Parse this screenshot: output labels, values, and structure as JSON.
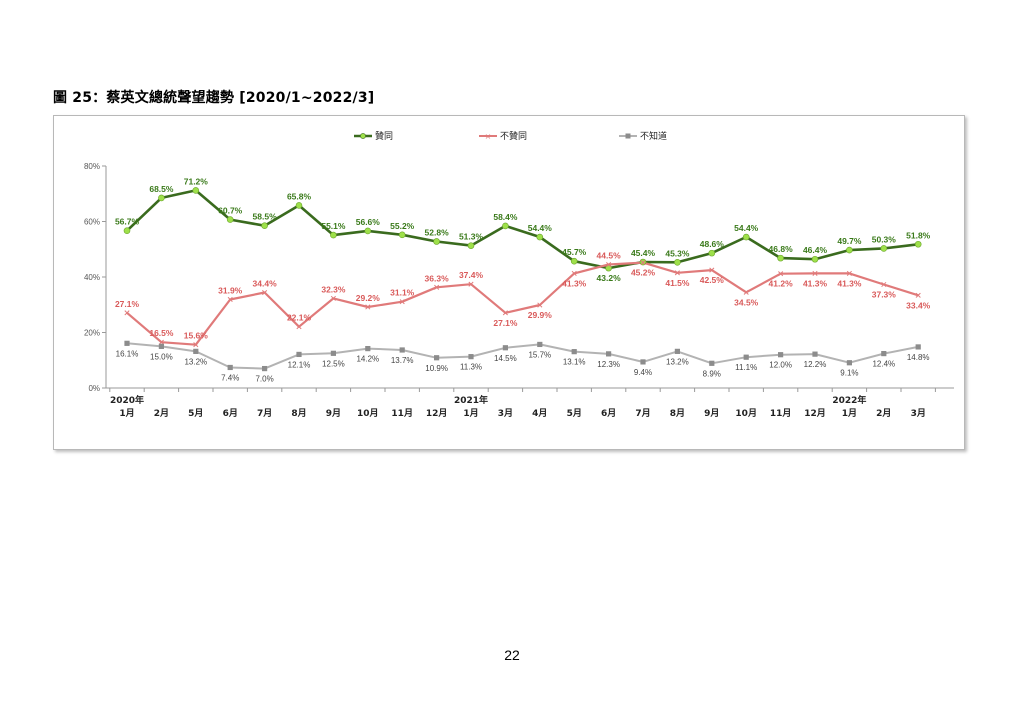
{
  "figure_title": "圖 25：蔡英文總統聲望趨勢  [2020/1~2022/3]",
  "page_number": "22",
  "chart_data": {
    "type": "line",
    "title": "",
    "xlabel": "",
    "ylabel": "",
    "ylim": [
      0,
      80
    ],
    "y_ticks": [
      "0%",
      "20%",
      "40%",
      "60%",
      "80%"
    ],
    "grid": false,
    "legend_position": "top",
    "categories": [
      "2020年 1月",
      "2月",
      "5月",
      "6月",
      "7月",
      "8月",
      "9月",
      "10月",
      "11月",
      "12月",
      "2021年 1月",
      "3月",
      "4月",
      "5月",
      "6月",
      "7月",
      "8月",
      "9月",
      "10月",
      "11月",
      "12月",
      "2022年 1月",
      "2月",
      "3月"
    ],
    "category_year_labels": [
      "2020年",
      "",
      "",
      "",
      "",
      "",
      "",
      "",
      "",
      "",
      "2021年",
      "",
      "",
      "",
      "",
      "",
      "",
      "",
      "",
      "",
      "",
      "2022年",
      "",
      ""
    ],
    "category_month_labels": [
      "1月",
      "2月",
      "5月",
      "6月",
      "7月",
      "8月",
      "9月",
      "10月",
      "11月",
      "12月",
      "1月",
      "3月",
      "4月",
      "5月",
      "6月",
      "7月",
      "8月",
      "9月",
      "10月",
      "11月",
      "12月",
      "1月",
      "2月",
      "3月"
    ],
    "series": [
      {
        "name": "贊同",
        "color": "#3a6b1e",
        "marker_color": "#9ee04a",
        "values": [
          56.7,
          68.5,
          71.2,
          60.7,
          58.5,
          65.8,
          55.1,
          56.6,
          55.2,
          52.8,
          51.3,
          58.4,
          54.4,
          45.7,
          43.2,
          45.4,
          45.3,
          48.6,
          54.4,
          46.8,
          46.4,
          49.7,
          50.3,
          51.8
        ],
        "labels": [
          "56.7%",
          "68.5%",
          "71.2%",
          "60.7%",
          "58.5%",
          "65.8%",
          "55.1%",
          "56.6%",
          "55.2%",
          "52.8%",
          "51.3%",
          "58.4%",
          "54.4%",
          "45.7%",
          "43.2%",
          "45.4%",
          "45.3%",
          "48.6%",
          "54.4%",
          "46.8%",
          "46.4%",
          "49.7%",
          "50.3%",
          "51.8%"
        ]
      },
      {
        "name": "不贊同",
        "color": "#e07a7a",
        "marker_color": "#ffffff",
        "values": [
          27.1,
          16.5,
          15.6,
          31.9,
          34.4,
          22.1,
          32.3,
          29.2,
          31.1,
          36.3,
          37.4,
          27.1,
          29.9,
          41.3,
          44.5,
          45.2,
          41.5,
          42.5,
          34.5,
          41.2,
          41.3,
          41.3,
          37.3,
          33.4
        ],
        "labels": [
          "27.1%",
          "16.5%",
          "15.6%",
          "31.9%",
          "34.4%",
          "22.1%",
          "32.3%",
          "29.2%",
          "31.1%",
          "36.3%",
          "37.4%",
          "27.1%",
          "29.9%",
          "41.3%",
          "44.5%",
          "45.2%",
          "41.5%",
          "42.5%",
          "34.5%",
          "41.2%",
          "41.3%",
          "41.3%",
          "37.3%",
          "33.4%"
        ]
      },
      {
        "name": "不知道",
        "color": "#b3b3b3",
        "marker_color": "#8c8c8c",
        "values": [
          16.1,
          15.0,
          13.2,
          7.4,
          7.0,
          12.1,
          12.5,
          14.2,
          13.7,
          10.9,
          11.3,
          14.5,
          15.7,
          13.1,
          12.3,
          9.4,
          13.2,
          8.9,
          11.1,
          12.0,
          12.2,
          9.1,
          12.4,
          14.8
        ],
        "labels": [
          "16.1%",
          "15.0%",
          "13.2%",
          "7.4%",
          "7.0%",
          "12.1%",
          "12.5%",
          "14.2%",
          "13.7%",
          "10.9%",
          "11.3%",
          "14.5%",
          "15.7%",
          "13.1%",
          "12.3%",
          "9.4%",
          "13.2%",
          "8.9%",
          "11.1%",
          "12.0%",
          "12.2%",
          "9.1%",
          "12.4%",
          "14.8%"
        ]
      }
    ]
  }
}
